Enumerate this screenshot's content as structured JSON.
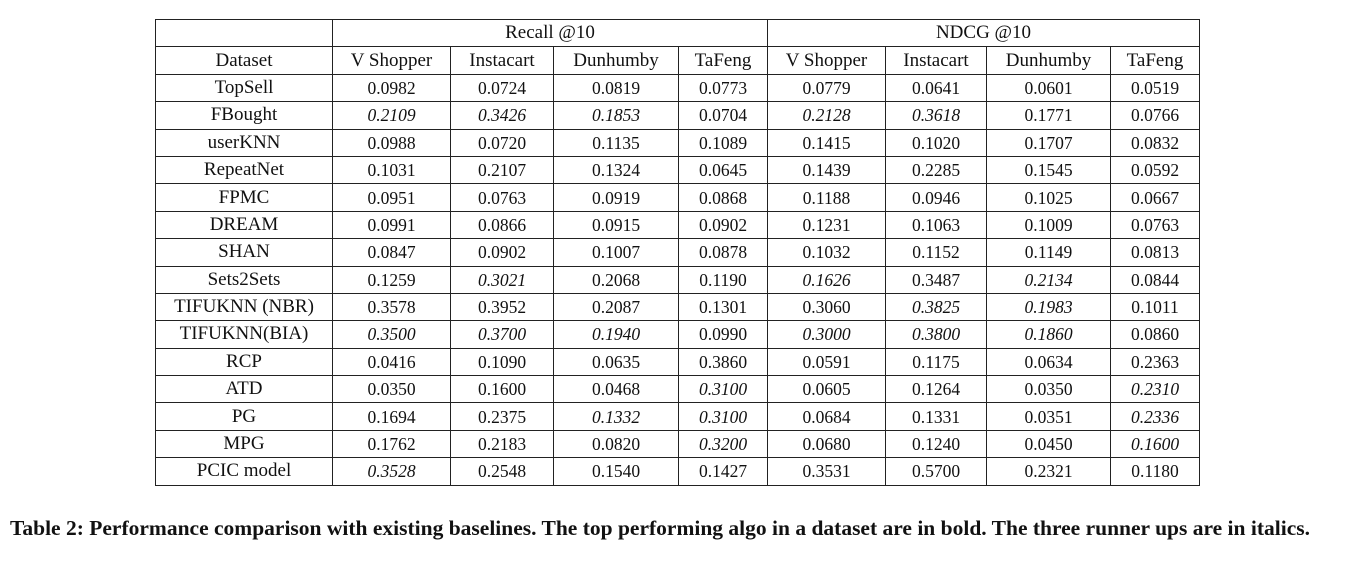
{
  "table": {
    "dataset_header": "Dataset",
    "groups": [
      {
        "label": "Recall @10"
      },
      {
        "label": "NDCG @10"
      }
    ],
    "columns": [
      "V Shopper",
      "Instacart",
      "Dunhumby",
      "TaFeng",
      "V Shopper",
      "Instacart",
      "Dunhumby",
      "TaFeng"
    ],
    "rows": [
      {
        "name": "TopSell",
        "values": [
          "0.0982",
          "0.0724",
          "0.0819",
          "0.0773",
          "0.0779",
          "0.0641",
          "0.0601",
          "0.0519"
        ],
        "styles": [
          "",
          "",
          "",
          "",
          "",
          "",
          "",
          ""
        ]
      },
      {
        "name": "FBought",
        "values": [
          "0.2109",
          "0.3426",
          "0.1853",
          "0.0704",
          "0.2128",
          "0.3618",
          "0.1771",
          "0.0766"
        ],
        "styles": [
          "i",
          "i",
          "i",
          "",
          "i",
          "i",
          "",
          ""
        ]
      },
      {
        "name": "userKNN",
        "values": [
          "0.0988",
          "0.0720",
          "0.1135",
          "0.1089",
          "0.1415",
          "0.1020",
          "0.1707",
          "0.0832"
        ],
        "styles": [
          "",
          "",
          "",
          "",
          "",
          "",
          "",
          ""
        ]
      },
      {
        "name": "RepeatNet",
        "values": [
          "0.1031",
          "0.2107",
          "0.1324",
          "0.0645",
          "0.1439",
          "0.2285",
          "0.1545",
          "0.0592"
        ],
        "styles": [
          "",
          "",
          "",
          "",
          "",
          "",
          "",
          ""
        ]
      },
      {
        "name": "FPMC",
        "values": [
          "0.0951",
          "0.0763",
          "0.0919",
          "0.0868",
          "0.1188",
          "0.0946",
          "0.1025",
          "0.0667"
        ],
        "styles": [
          "",
          "",
          "",
          "",
          "",
          "",
          "",
          ""
        ]
      },
      {
        "name": "DREAM",
        "values": [
          "0.0991",
          "0.0866",
          "0.0915",
          "0.0902",
          "0.1231",
          "0.1063",
          "0.1009",
          "0.0763"
        ],
        "styles": [
          "",
          "",
          "",
          "",
          "",
          "",
          "",
          ""
        ]
      },
      {
        "name": "SHAN",
        "values": [
          "0.0847",
          "0.0902",
          "0.1007",
          "0.0878",
          "0.1032",
          "0.1152",
          "0.1149",
          "0.0813"
        ],
        "styles": [
          "",
          "",
          "",
          "",
          "",
          "",
          "",
          ""
        ]
      },
      {
        "name": "Sets2Sets",
        "values": [
          "0.1259",
          "0.3021",
          "0.2068",
          "0.1190",
          "0.1626",
          "0.3487",
          "0.2134",
          "0.0844"
        ],
        "styles": [
          "",
          "i",
          "",
          "",
          "i",
          "",
          "i",
          ""
        ]
      },
      {
        "name": "TIFUKNN (NBR)",
        "values": [
          "0.3578",
          "0.3952",
          "0.2087",
          "0.1301",
          "0.3060",
          "0.3825",
          "0.1983",
          "0.1011"
        ],
        "styles": [
          "b",
          "b",
          "b",
          "",
          "",
          "i",
          "i",
          ""
        ]
      },
      {
        "name": "TIFUKNN(BIA)",
        "values": [
          "0.3500",
          "0.3700",
          "0.1940",
          "0.0990",
          "0.3000",
          "0.3800",
          "0.1860",
          "0.0860"
        ],
        "styles": [
          "i",
          "i",
          "i",
          "",
          "i",
          "i",
          "i",
          ""
        ]
      },
      {
        "name": "RCP",
        "values": [
          "0.0416",
          "0.1090",
          "0.0635",
          "0.3860",
          "0.0591",
          "0.1175",
          "0.0634",
          "0.2363"
        ],
        "styles": [
          "",
          "",
          "",
          "b",
          "",
          "",
          "",
          "b"
        ]
      },
      {
        "name": "ATD",
        "values": [
          "0.0350",
          "0.1600",
          "0.0468",
          "0.3100",
          "0.0605",
          "0.1264",
          "0.0350",
          "0.2310"
        ],
        "styles": [
          "",
          "",
          "",
          "i",
          "",
          "",
          "",
          "i"
        ]
      },
      {
        "name": "PG",
        "values": [
          "0.1694",
          "0.2375",
          "0.1332",
          "0.3100",
          "0.0684",
          "0.1331",
          "0.0351",
          "0.2336"
        ],
        "styles": [
          "",
          "",
          "i",
          "i",
          "",
          "",
          "",
          "i"
        ]
      },
      {
        "name": "MPG",
        "values": [
          "0.1762",
          "0.2183",
          "0.0820",
          "0.3200",
          "0.0680",
          "0.1240",
          "0.0450",
          "0.1600"
        ],
        "styles": [
          "",
          "",
          "",
          "i",
          "",
          "",
          "",
          "i"
        ]
      },
      {
        "name": "PCIC model",
        "values": [
          "0.3528",
          "0.2548",
          "0.1540",
          "0.1427",
          "0.3531",
          "0.5700",
          "0.2321",
          "0.1180"
        ],
        "styles": [
          "i",
          "",
          "",
          "",
          "b",
          "b",
          "b",
          ""
        ]
      }
    ]
  },
  "caption": "Table 2: Performance comparison with existing baselines. The top performing algo in a dataset are in bold. The three runner ups are in italics."
}
